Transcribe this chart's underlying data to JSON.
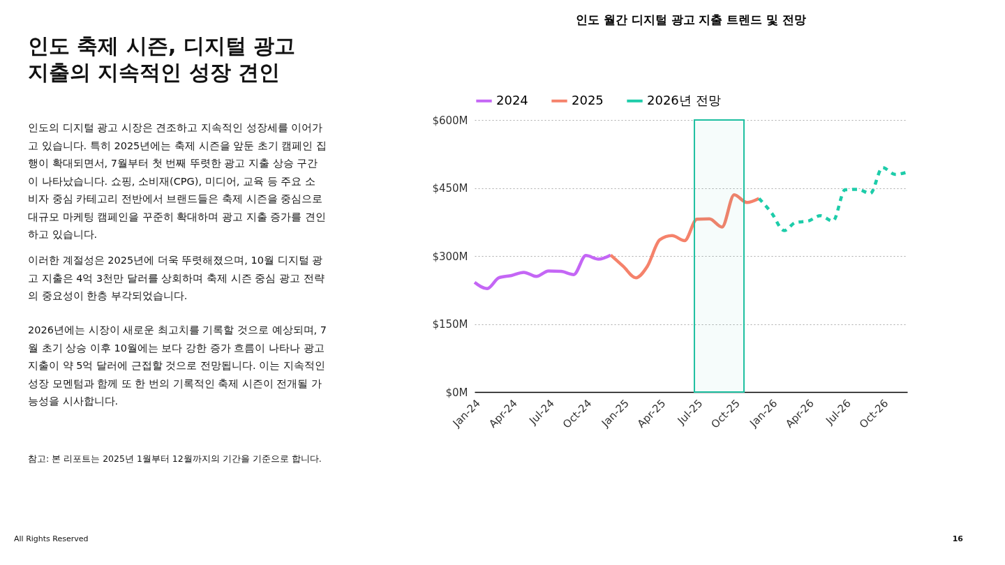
{
  "chart_data": {
    "type": "line",
    "title": "인도 월간 디지털 광고 지출 트렌드 및 전망",
    "series": [
      {
        "name": "2024",
        "color": "#c466f5",
        "line_style": "solid",
        "x": [
          "2024-01",
          "2024-02",
          "2024-03",
          "2024-04",
          "2024-05",
          "2024-06",
          "2024-07",
          "2024-08",
          "2024-09",
          "2024-10",
          "2024-11",
          "2024-12"
        ],
        "values": [
          242,
          228,
          252,
          257,
          264,
          255,
          267,
          266,
          259,
          301,
          293,
          302
        ]
      },
      {
        "name": "2025",
        "color": "#f5826b",
        "line_style": "solid",
        "x": [
          "2024-12",
          "2025-01",
          "2025-02",
          "2025-03",
          "2025-04",
          "2025-05",
          "2025-06",
          "2025-07",
          "2025-08",
          "2025-09",
          "2025-10",
          "2025-11",
          "2025-12"
        ],
        "values": [
          302,
          277,
          252,
          277,
          336,
          345,
          334,
          381,
          382,
          364,
          435,
          418,
          427
        ]
      },
      {
        "name": "2026년 전망",
        "color": "#1dcca9",
        "line_style": "dashed",
        "x": [
          "2025-12",
          "2026-01",
          "2026-02",
          "2026-03",
          "2026-04",
          "2026-05",
          "2026-06",
          "2026-07",
          "2026-08",
          "2026-09",
          "2026-10",
          "2026-11",
          "2026-12"
        ],
        "values": [
          427,
          395,
          356,
          374,
          377,
          389,
          377,
          446,
          447,
          438,
          495,
          480,
          485
        ]
      }
    ],
    "xlim": [
      "2024-01",
      "2026-12"
    ],
    "xticks": [
      {
        "value": "2024-01",
        "label": "Jan-24"
      },
      {
        "value": "2024-04",
        "label": "Apr-24"
      },
      {
        "value": "2024-07",
        "label": "Jul-24"
      },
      {
        "value": "2024-10",
        "label": "Oct-24"
      },
      {
        "value": "2025-01",
        "label": "Jan-25"
      },
      {
        "value": "2025-04",
        "label": "Apr-25"
      },
      {
        "value": "2025-07",
        "label": "Jul-25"
      },
      {
        "value": "2025-10",
        "label": "Oct-25"
      },
      {
        "value": "2026-01",
        "label": "Jan-26"
      },
      {
        "value": "2026-04",
        "label": "Apr-26"
      },
      {
        "value": "2026-07",
        "label": "Jul-26"
      },
      {
        "value": "2026-10",
        "label": "Oct-26"
      }
    ],
    "ylim": [
      0,
      600
    ],
    "yticks": [
      {
        "value": 0,
        "label": "$0M"
      },
      {
        "value": 150,
        "label": "$150M"
      },
      {
        "value": 300,
        "label": "$300M"
      },
      {
        "value": 450,
        "label": "$450M"
      },
      {
        "value": 600,
        "label": "$600M"
      }
    ],
    "bands": [
      {
        "axis": "x",
        "from": "2025-06-25",
        "to": "2025-10-25",
        "color": "#1dbfa0"
      }
    ],
    "grid": "y",
    "legend": "top",
    "annotations": [
      "인도 축제 시즌, 디지털 광고\n지출의 지속적인 성장 견인",
      "인도의 디지털 광고 시장은 견조하고 지속적인 성장세를 이어가\n고 있습니다. 특히 2025년에는 축제 시즌을 앞둔 초기 캠페인 집\n행이 확대되면서, 7월부터 첫 번째 뚜렷한 광고 지출 상승 구간\n이 나타났습니다. 쇼핑, 소비재(CPG), 미디어, 교육 등 주요 소\n비자 중심 카테고리 전반에서 브랜드들은 축제 시즌을 중심으로\n대규모 마케팅 캠페인을 꾸준히 확대하며 광고 지출 증가를 견인\n하고 있습니다.",
      "이러한 계절성은 2025년에 더욱 뚜렷해졌으며, 10월 디지털 광\n고 지출은 4억 3천만 달러를 상회하며 축제 시즌 중심 광고 전략\n의 중요성이 한층 부각되었습니다.",
      "2026년에는 시장이 새로운 최고치를 기록할 것으로 예상되며, 7\n월 초기 상승 이후 10월에는 보다 강한 증가 흐름이 나타나 광고\n지출이 약 5억 달러에 근접할 것으로 전망됩니다. 이는 지속적인\n성장 모멘텀과 함께 또 한 번의 기록적인 축제 시즌이 전개될 가\n능성을 시사합니다.",
      "참고: 본 리포트는 2025년 1월부터 12월까지의 기간을 기준으로 합니다.",
      "All Rights Reserved",
      "16"
    ]
  }
}
